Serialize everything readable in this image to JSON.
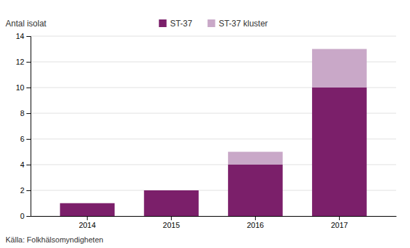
{
  "chart_data": {
    "type": "bar",
    "stacked": true,
    "ylabel": "Antal isolat",
    "annotations": [
      "Källa: Folkhälsomyndigheten"
    ],
    "categories": [
      "2014",
      "2015",
      "2016",
      "2017"
    ],
    "series": [
      {
        "name": "ST-37",
        "color": "#7B1F6A",
        "values": [
          1,
          2,
          4,
          10
        ]
      },
      {
        "name": "ST-37 kluster",
        "color": "#C9A8C8",
        "values": [
          0,
          0,
          1,
          3
        ]
      }
    ],
    "ylim": [
      0,
      14
    ],
    "yticks": [
      0,
      2,
      4,
      6,
      8,
      10,
      12,
      14
    ],
    "grid": true,
    "legend": "top"
  }
}
